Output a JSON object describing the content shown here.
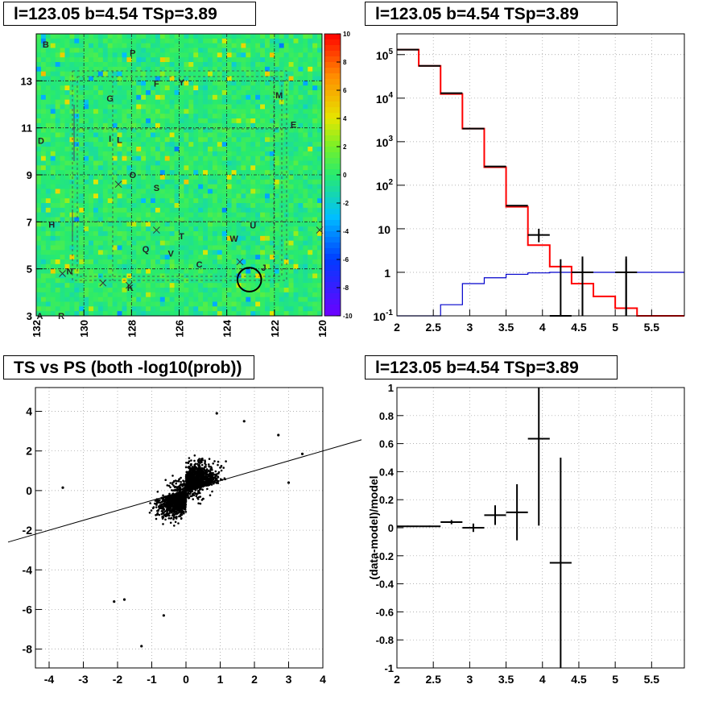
{
  "panels": {
    "skymap_title": "l=123.05 b=4.54 TSp=3.89",
    "spectrum_title": "l=123.05 b=4.54 TSp=3.89",
    "scatter_title": "TS vs PS (both -log10(prob))",
    "residual_title": "l=123.05 b=4.54 TSp=3.89"
  },
  "colors": {
    "data": "#000000",
    "model": "#ff0000",
    "background": "#0000cc"
  },
  "chart_data": [
    {
      "type": "heatmap",
      "title": "l=123.05 b=4.54 TSp=3.89",
      "xlim": [
        132,
        120
      ],
      "ylim": [
        3,
        15
      ],
      "x_ticks": [
        132,
        130,
        128,
        126,
        124,
        122,
        120
      ],
      "y_ticks": [
        3,
        5,
        7,
        9,
        11,
        13
      ],
      "colorbar": {
        "range": [
          -10,
          10
        ],
        "ticks": [
          -10,
          -8,
          -6,
          -4,
          -2,
          0,
          2,
          4,
          6,
          8,
          10
        ]
      },
      "source_labels": [
        {
          "label": "B",
          "l": 131.6,
          "b": 14.55
        },
        {
          "label": "P",
          "l": 127.95,
          "b": 14.2
        },
        {
          "label": "F",
          "l": 126.95,
          "b": 12.9
        },
        {
          "label": "Y",
          "l": 125.9,
          "b": 12.95
        },
        {
          "label": "M",
          "l": 121.8,
          "b": 12.4
        },
        {
          "label": "G",
          "l": 128.9,
          "b": 12.25
        },
        {
          "label": "E",
          "l": 121.2,
          "b": 11.15
        },
        {
          "label": "D",
          "l": 131.8,
          "b": 10.45
        },
        {
          "label": "I",
          "l": 128.9,
          "b": 10.55
        },
        {
          "label": "L",
          "l": 128.5,
          "b": 10.5
        },
        {
          "label": "O",
          "l": 127.95,
          "b": 9.0
        },
        {
          "label": "S",
          "l": 126.95,
          "b": 8.45
        },
        {
          "label": "H",
          "l": 131.35,
          "b": 6.9
        },
        {
          "label": "U",
          "l": 122.9,
          "b": 6.85
        },
        {
          "label": "T",
          "l": 125.9,
          "b": 6.4
        },
        {
          "label": "W",
          "l": 123.7,
          "b": 6.3
        },
        {
          "label": "Q",
          "l": 127.4,
          "b": 5.85
        },
        {
          "label": "V",
          "l": 126.35,
          "b": 5.65
        },
        {
          "label": "C",
          "l": 125.15,
          "b": 5.2
        },
        {
          "label": "N",
          "l": 130.6,
          "b": 4.9
        },
        {
          "label": "J",
          "l": 122.45,
          "b": 5.05
        },
        {
          "label": "K",
          "l": 128.05,
          "b": 4.2
        },
        {
          "label": "A",
          "l": 131.85,
          "b": 3.0
        },
        {
          "label": "R",
          "l": 130.95,
          "b": 3.0
        }
      ],
      "cross_markers": [
        {
          "l": 128.55,
          "b": 8.6
        },
        {
          "l": 126.95,
          "b": 6.65
        },
        {
          "l": 123.45,
          "b": 5.3
        },
        {
          "l": 129.2,
          "b": 4.4
        },
        {
          "l": 128.1,
          "b": 4.3
        },
        {
          "l": 130.9,
          "b": 4.8
        },
        {
          "l": 120.1,
          "b": 6.65
        }
      ],
      "circle_marker": {
        "l": 123.05,
        "b": 4.54,
        "radius_deg": 0.5
      }
    },
    {
      "type": "line",
      "title": "l=123.05 b=4.54 TSp=3.89",
      "xlim": [
        2,
        5.95
      ],
      "ylim": [
        0.1,
        300000
      ],
      "yscale": "log",
      "x_ticks": [
        2,
        2.5,
        3,
        3.5,
        4,
        4.5,
        5,
        5.5
      ],
      "y_ticks": [
        "10^-1",
        "1",
        "10",
        "10^2",
        "10^3",
        "10^4",
        "10^5"
      ],
      "bin_edges": [
        2,
        2.3,
        2.6,
        2.9,
        3.2,
        3.5,
        3.8,
        4.1,
        4.4,
        4.7,
        5.0,
        5.3,
        5.6,
        5.95
      ],
      "series": [
        {
          "style": "red-step",
          "values": [
            130000,
            55000,
            12500,
            2000,
            260,
            32,
            4.2,
            1.35,
            0.55,
            0.28,
            0.15,
            0.1,
            0.1
          ]
        },
        {
          "style": "blue-step",
          "values": [
            0.1,
            0.1,
            0.18,
            0.55,
            0.75,
            0.9,
            0.97,
            1.0,
            1.0,
            1.0,
            1.0,
            1.0,
            1.0
          ]
        },
        {
          "style": "black-points",
          "x": [
            2.15,
            2.45,
            2.75,
            3.05,
            3.35,
            3.65,
            3.95,
            4.25,
            4.55,
            5.15
          ],
          "y": [
            130000,
            55000,
            13000,
            2000,
            270,
            34,
            7.2,
            0.1,
            1.0,
            1.0
          ],
          "yerr_low": [
            0,
            0,
            0,
            0,
            0,
            0,
            2.3,
            0,
            0.9,
            0.9
          ],
          "yerr_high": [
            0,
            0,
            0,
            0,
            0,
            0,
            2.8,
            0,
            1.3,
            1.3
          ]
        }
      ]
    },
    {
      "type": "scatter",
      "title": "TS vs PS (both -log10(prob))",
      "xlim": [
        -4.4,
        4
      ],
      "ylim": [
        -8.95,
        5.2
      ],
      "x_ticks": [
        -4,
        -3,
        -2,
        -1,
        0,
        1,
        2,
        3,
        4
      ],
      "y_ticks": [
        -8,
        -6,
        -4,
        -2,
        0,
        2,
        4
      ],
      "reference_line": {
        "slope": 0.5,
        "intercept": 0
      },
      "points_description": "dense cloud of ~3000 sources concentrated near origin, stretched along positive diagonal",
      "outliers": [
        {
          "x": -3.6,
          "y": 0.15
        },
        {
          "x": -1.8,
          "y": -5.5
        },
        {
          "x": -1.3,
          "y": -7.85
        },
        {
          "x": -0.65,
          "y": -6.3
        },
        {
          "x": 3.0,
          "y": 0.4
        },
        {
          "x": 3.4,
          "y": 1.85
        },
        {
          "x": 0.9,
          "y": 3.9
        },
        {
          "x": 1.7,
          "y": 3.5
        },
        {
          "x": -2.1,
          "y": -5.6
        },
        {
          "x": 2.7,
          "y": 2.8
        }
      ]
    },
    {
      "type": "scatter",
      "title": "l=123.05 b=4.54 TSp=3.89",
      "ylabel": "(data-model)/model",
      "xlim": [
        2,
        5.95
      ],
      "ylim": [
        -1,
        1
      ],
      "x_ticks": [
        2,
        2.5,
        3,
        3.5,
        4,
        4.5,
        5,
        5.5
      ],
      "y_ticks": [
        -1,
        -0.8,
        -0.6,
        -0.4,
        -0.2,
        0,
        0.2,
        0.4,
        0.6,
        0.8,
        1
      ],
      "points": [
        {
          "x": 2.15,
          "y": 0.01,
          "yerr": 0.005
        },
        {
          "x": 2.45,
          "y": 0.01,
          "yerr": 0.005
        },
        {
          "x": 2.75,
          "y": 0.04,
          "yerr": 0.015
        },
        {
          "x": 3.05,
          "y": 0.0,
          "yerr": 0.03
        },
        {
          "x": 3.35,
          "y": 0.09,
          "yerr": 0.07
        },
        {
          "x": 3.65,
          "y": 0.11,
          "yerr": 0.2
        },
        {
          "x": 3.95,
          "y": 0.635,
          "yerr": 0.62
        },
        {
          "x": 4.25,
          "y": -0.25,
          "yerr": 0.75
        }
      ]
    }
  ]
}
